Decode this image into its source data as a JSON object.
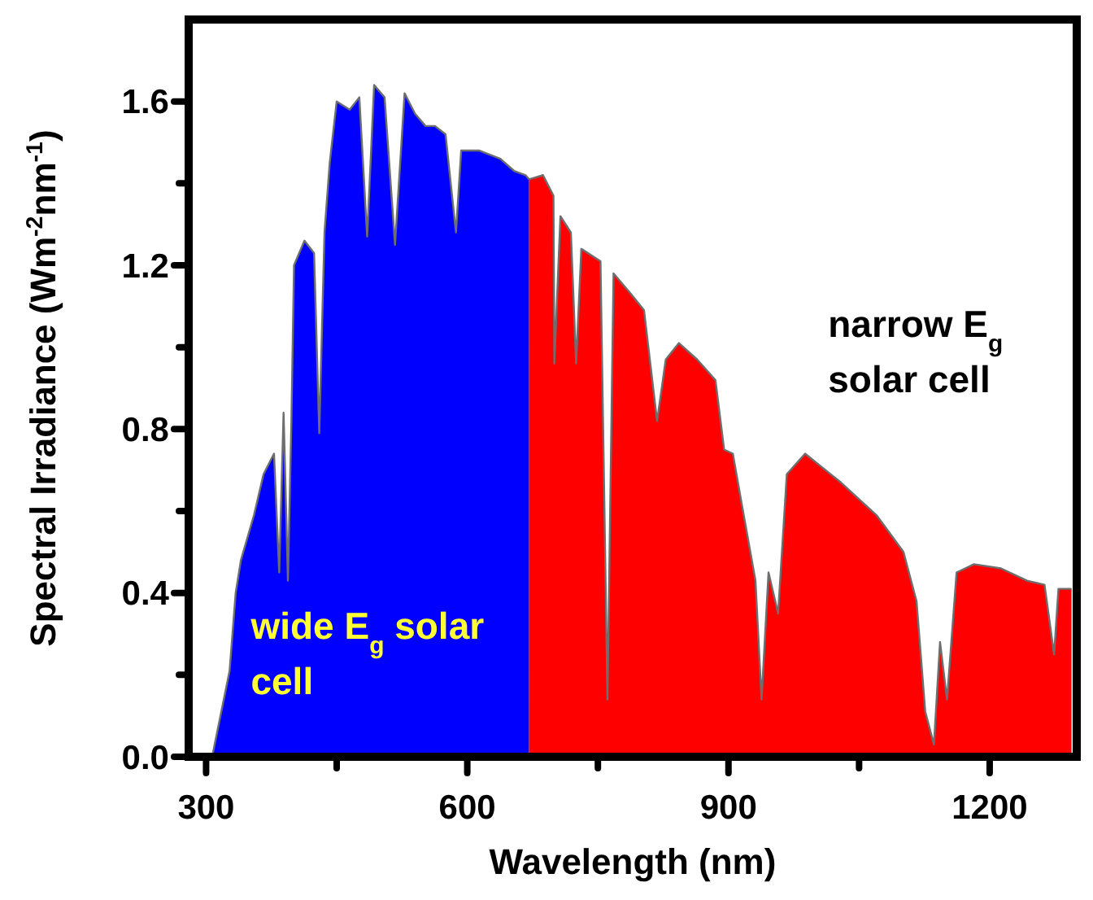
{
  "chart_data": {
    "type": "area",
    "xlabel": "Wavelength (nm)",
    "ylabel": "Spectral Irradiance (Wm$^{-2}$nm$^{-1}$)",
    "xlim": [
      280,
      1300
    ],
    "xticks": [
      300,
      {
        "value": 450,
        "label": null
      },
      600,
      {
        "value": 750,
        "label": null
      },
      900,
      {
        "value": 1050,
        "label": null
      },
      1200
    ],
    "ylim": [
      0,
      1.8
    ],
    "yticks": [
      {
        "value": 0,
        "label": "0.0"
      },
      {
        "value": 0.2,
        "label": null
      },
      0.4,
      {
        "value": 0.6,
        "label": null
      },
      0.8,
      {
        "value": 1.0,
        "label": null
      },
      1.2,
      {
        "value": 1.4,
        "label": null
      },
      1.6
    ],
    "grid": false,
    "annotations": [
      "wide E$_{g}$ solar cell",
      "narrow E$_{g}$ solar cell"
    ],
    "series": [
      {
        "color": "#0000ff",
        "x": [
          307,
          327,
          334,
          340,
          355,
          366,
          378,
          384,
          389,
          394,
          398,
          401,
          413,
          424,
          430,
          436,
          442,
          450,
          465,
          476,
          485,
          493,
          505,
          517,
          528,
          540,
          552,
          563,
          575,
          587,
          593,
          614,
          638,
          654,
          667,
          671
        ],
        "values": [
          0,
          0.21,
          0.4,
          0.48,
          0.59,
          0.69,
          0.74,
          0.45,
          0.84,
          0.43,
          0.82,
          1.2,
          1.26,
          1.23,
          0.79,
          1.28,
          1.45,
          1.6,
          1.58,
          1.61,
          1.27,
          1.64,
          1.61,
          1.25,
          1.62,
          1.57,
          1.54,
          1.54,
          1.52,
          1.28,
          1.48,
          1.48,
          1.46,
          1.43,
          1.42,
          1.41
        ]
      },
      {
        "color": "#ff0000",
        "x": [
          671,
          687,
          699,
          700,
          707,
          719,
          725,
          731,
          753,
          761,
          768,
          788,
          803,
          818,
          828,
          843,
          864,
          885,
          895,
          905,
          915,
          931,
          938,
          946,
          957,
          967,
          988,
          1029,
          1070,
          1101,
          1116,
          1126,
          1136,
          1143,
          1151,
          1162,
          1182,
          1213,
          1243,
          1263,
          1274,
          1279,
          1294
        ],
        "values": [
          1.41,
          1.42,
          1.37,
          0.96,
          1.32,
          1.28,
          0.96,
          1.24,
          1.21,
          0.14,
          1.18,
          1.13,
          1.09,
          0.82,
          0.97,
          1.01,
          0.97,
          0.92,
          0.75,
          0.74,
          0.62,
          0.43,
          0.14,
          0.45,
          0.35,
          0.69,
          0.74,
          0.67,
          0.59,
          0.5,
          0.38,
          0.11,
          0.03,
          0.28,
          0.14,
          0.45,
          0.47,
          0.46,
          0.43,
          0.42,
          0.25,
          0.41,
          0.41
        ]
      }
    ]
  }
}
